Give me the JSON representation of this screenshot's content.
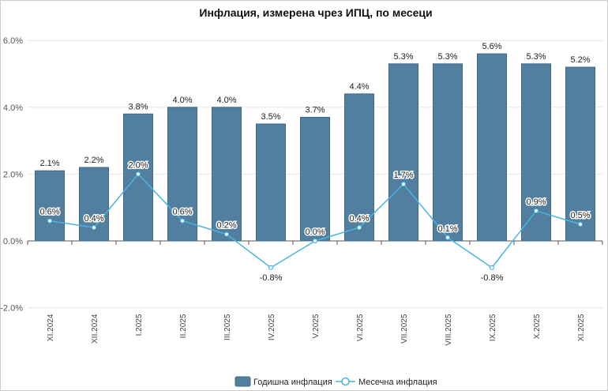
{
  "chart_data": {
    "type": "bar",
    "title": "Инфлация, измерена чрез ИПЦ, по месеци",
    "categories": [
      "XI.2024",
      "XII.2024",
      "I.2025",
      "II.2025",
      "III.2025",
      "IV.2025",
      "V.2025",
      "VI.2025",
      "VII.2025",
      "VIII.2025",
      "IX.2025",
      "X.2025",
      "XI.2025"
    ],
    "series": [
      {
        "name": "Годишна инфлация",
        "type": "bar",
        "values": [
          2.1,
          2.2,
          3.8,
          4.0,
          4.0,
          3.5,
          3.7,
          4.4,
          5.3,
          5.3,
          5.6,
          5.3,
          5.2
        ],
        "labels": [
          "2.1%",
          "2.2%",
          "3.8%",
          "4.0%",
          "4.0%",
          "3.5%",
          "3.7%",
          "4.4%",
          "5.3%",
          "5.3%",
          "5.6%",
          "5.3%",
          "5.2%"
        ]
      },
      {
        "name": "Месечна инфлация",
        "type": "line",
        "values": [
          0.6,
          0.4,
          2.0,
          0.6,
          0.2,
          -0.8,
          0.0,
          0.4,
          1.7,
          0.1,
          -0.8,
          0.9,
          0.5
        ],
        "labels": [
          "0.6%",
          "0.4%",
          "2.0%",
          "0.6%",
          "0.2%",
          "-0.8%",
          "0.0%",
          "0.4%",
          "1.7%",
          "0.1%",
          "-0.8%",
          "0.9%",
          "0.5%"
        ]
      }
    ],
    "ylim": [
      -2,
      6
    ],
    "yticks": [
      "-2.0%",
      "0.0%",
      "2.0%",
      "4.0%",
      "6.0%"
    ],
    "ytick_values": [
      -2,
      0,
      2,
      4,
      6
    ],
    "grid": true,
    "legend": "bottom-center",
    "colors": {
      "bar": "#527fa0",
      "bar_border": "#3f6a8a",
      "line": "#4ab4e0"
    }
  }
}
